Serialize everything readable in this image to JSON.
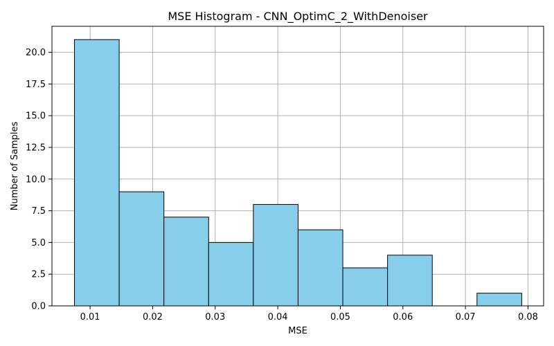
{
  "chart_data": {
    "type": "bar",
    "title": "MSE Histogram - CNN_OptimC_2_WithDenoiser",
    "xlabel": "MSE",
    "ylabel": "Number of Samples",
    "xlim": [
      0.0039,
      0.0825
    ],
    "ylim": [
      0,
      22.05
    ],
    "grid": true,
    "bar_color": "#87CEEB",
    "edge_color": "#000000",
    "grid_color": "#b0b0b0",
    "bins": [
      {
        "x0": 0.0075,
        "x1": 0.01465,
        "value": 21
      },
      {
        "x0": 0.01465,
        "x1": 0.0218,
        "value": 9
      },
      {
        "x0": 0.0218,
        "x1": 0.02895,
        "value": 7
      },
      {
        "x0": 0.02895,
        "x1": 0.0361,
        "value": 5
      },
      {
        "x0": 0.0361,
        "x1": 0.04325,
        "value": 8
      },
      {
        "x0": 0.04325,
        "x1": 0.0504,
        "value": 6
      },
      {
        "x0": 0.0504,
        "x1": 0.05755,
        "value": 3
      },
      {
        "x0": 0.05755,
        "x1": 0.0647,
        "value": 4
      },
      {
        "x0": 0.0647,
        "x1": 0.07185,
        "value": 0
      },
      {
        "x0": 0.07185,
        "x1": 0.079,
        "value": 1
      }
    ],
    "xticks": [
      0.01,
      0.02,
      0.03,
      0.04,
      0.05,
      0.06,
      0.07,
      0.08
    ],
    "xtick_labels": [
      "0.01",
      "0.02",
      "0.03",
      "0.04",
      "0.05",
      "0.06",
      "0.07",
      "0.08"
    ],
    "yticks": [
      0,
      2.5,
      5,
      7.5,
      10,
      12.5,
      15,
      17.5,
      20
    ],
    "ytick_labels": [
      "0.0",
      "2.5",
      "5.0",
      "7.5",
      "10.0",
      "12.5",
      "15.0",
      "17.5",
      "20.0"
    ]
  }
}
